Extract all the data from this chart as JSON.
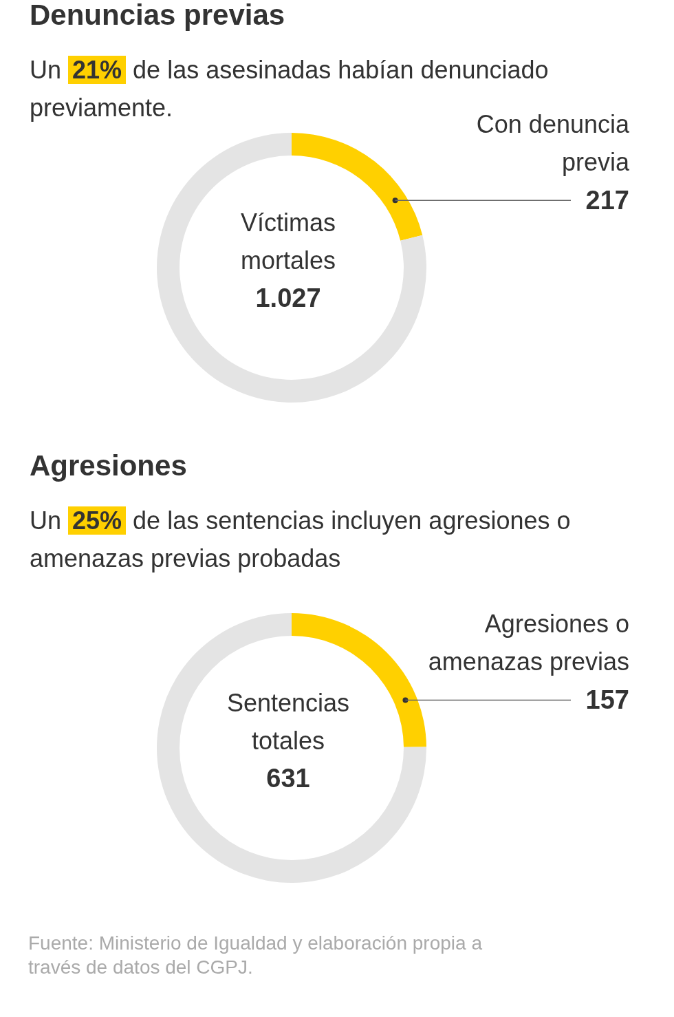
{
  "chart_data": [
    {
      "type": "donut",
      "title": "Denuncias previas",
      "subtitle": "Un 21% de las asesinadas habían denunciado previamente.",
      "categories": [
        "Con denuncia previa",
        null
      ],
      "values": [
        217,
        810
      ],
      "colors": [
        "#ffd000",
        "#e4e4e4"
      ],
      "value_labels": [
        "217",
        null
      ],
      "annotations": [
        "Víctimas mortales",
        "1.027"
      ]
    },
    {
      "type": "donut",
      "title": "Agresiones",
      "subtitle": "Un 25% de las sentencias incluyen agresiones o amenazas previas probadas",
      "categories": [
        "Agresiones o amenazas previas",
        null
      ],
      "values": [
        157,
        474
      ],
      "colors": [
        "#ffd000",
        "#e4e4e4"
      ],
      "value_labels": [
        "157",
        null
      ],
      "annotations": [
        "Sentencias totales",
        "631",
        "Fuente: Ministerio de Igualdad y elaboración propia a través de datos del CGPJ."
      ]
    }
  ]
}
